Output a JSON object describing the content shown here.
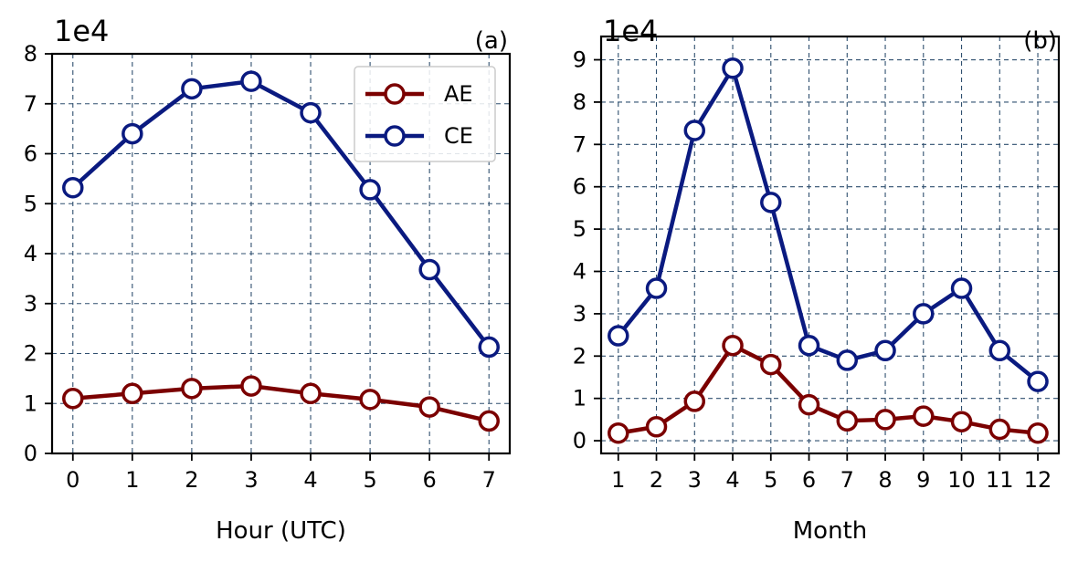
{
  "figure": {
    "panels": [
      "a",
      "b"
    ]
  },
  "colors": {
    "AE": "#7b0000",
    "CE": "#0a1a80",
    "grid": "#2f4f6f"
  },
  "chart_data": [
    {
      "id": "a",
      "type": "line",
      "panel_label": "(a)",
      "multiplier_label": "1e4",
      "xlabel": "Hour (UTC)",
      "ylabel": "",
      "x": [
        0,
        1,
        2,
        3,
        4,
        5,
        6,
        7
      ],
      "xticks": [
        "0",
        "1",
        "2",
        "3",
        "4",
        "5",
        "6",
        "7"
      ],
      "xlim": [
        -0.35,
        7.35
      ],
      "ylim": [
        0,
        8
      ],
      "yticks": [
        "0",
        "1",
        "2",
        "3",
        "4",
        "5",
        "6",
        "7",
        "8"
      ],
      "grid": true,
      "legend": {
        "placement": "top-right",
        "entries": [
          "AE",
          "CE"
        ]
      },
      "series": [
        {
          "name": "AE",
          "values": [
            1.1,
            1.2,
            1.3,
            1.35,
            1.2,
            1.08,
            0.93,
            0.65
          ]
        },
        {
          "name": "CE",
          "values": [
            5.32,
            6.4,
            7.3,
            7.45,
            6.82,
            5.28,
            3.68,
            2.13
          ]
        }
      ]
    },
    {
      "id": "b",
      "type": "line",
      "panel_label": "(b)",
      "multiplier_label": "1e4",
      "xlabel": "Month",
      "ylabel": "",
      "x": [
        1,
        2,
        3,
        4,
        5,
        6,
        7,
        8,
        9,
        10,
        11,
        12
      ],
      "xticks": [
        "1",
        "2",
        "3",
        "4",
        "5",
        "6",
        "7",
        "8",
        "9",
        "10",
        "11",
        "12"
      ],
      "xlim": [
        0.55,
        12.55
      ],
      "ylim": [
        -0.3,
        9.55
      ],
      "yticks": [
        "0",
        "1",
        "2",
        "3",
        "4",
        "5",
        "6",
        "7",
        "8",
        "9"
      ],
      "grid": true,
      "series": [
        {
          "name": "AE",
          "values": [
            0.18,
            0.33,
            0.93,
            2.25,
            1.8,
            0.85,
            0.47,
            0.5,
            0.58,
            0.45,
            0.27,
            0.18
          ]
        },
        {
          "name": "CE",
          "values": [
            2.48,
            3.6,
            7.33,
            8.8,
            5.63,
            2.25,
            1.9,
            2.13,
            3.0,
            3.6,
            2.13,
            1.4
          ]
        }
      ]
    }
  ]
}
